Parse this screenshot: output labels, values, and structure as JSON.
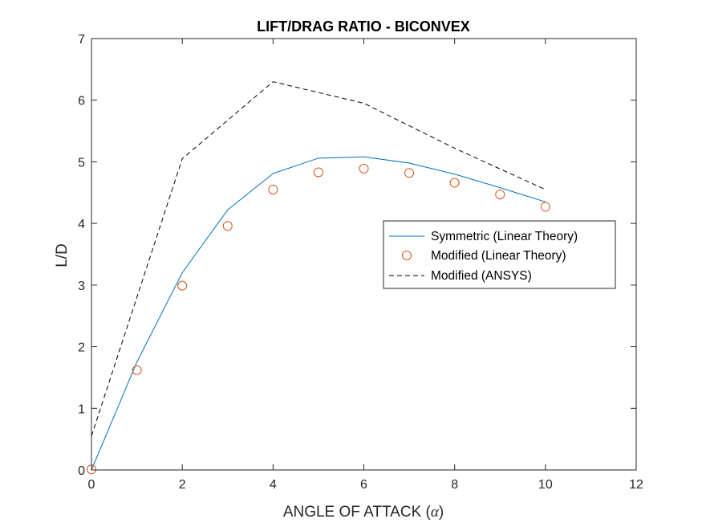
{
  "chart_data": {
    "type": "line",
    "title": "LIFT/DRAG RATIO - BICONVEX",
    "xlabel": "ANGLE OF ATTACK (α)",
    "xlabel_prefix": "ANGLE OF ATTACK (",
    "xlabel_symbol": "α",
    "xlabel_suffix": ")",
    "ylabel": "L/D",
    "xlim": [
      0,
      12
    ],
    "ylim": [
      0,
      7
    ],
    "xticks": [
      "0",
      "2",
      "4",
      "6",
      "8",
      "10",
      "12"
    ],
    "yticks": [
      "0",
      "1",
      "2",
      "3",
      "4",
      "5",
      "6",
      "7"
    ],
    "grid": false,
    "legend_position": "right",
    "series": [
      {
        "name": "Symmetric (Linear Theory)",
        "style": "solid-line",
        "color": "#0072BD",
        "x": [
          0,
          1,
          2,
          3,
          4,
          5,
          6,
          7,
          8,
          9,
          10
        ],
        "y": [
          0,
          1.75,
          3.2,
          4.22,
          4.81,
          5.06,
          5.08,
          4.98,
          4.8,
          4.58,
          4.35
        ]
      },
      {
        "name": "Modified (Linear Theory)",
        "style": "circle-markers",
        "color": "#D95319",
        "x": [
          0,
          1,
          2,
          3,
          4,
          5,
          6,
          7,
          8,
          9,
          10
        ],
        "y": [
          0.01,
          1.62,
          2.99,
          3.96,
          4.55,
          4.83,
          4.89,
          4.82,
          4.66,
          4.47,
          4.27
        ]
      },
      {
        "name": "Modified (ANSYS)",
        "style": "dashed-line",
        "color": "#000000",
        "x": [
          0,
          2,
          4,
          6,
          8,
          10
        ],
        "y": [
          0.55,
          5.05,
          6.3,
          5.95,
          5.22,
          4.55
        ]
      }
    ]
  }
}
